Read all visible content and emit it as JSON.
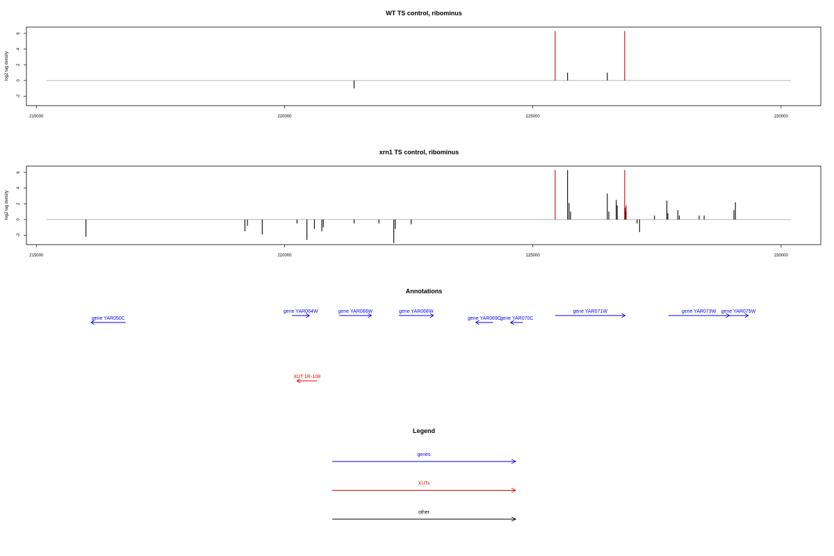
{
  "chart_data": [
    {
      "type": "bar",
      "title": "WT TS control, ribominus",
      "ylabel": "log2 tag density",
      "xlim": [
        214800,
        230800
      ],
      "ylim": [
        -3.2,
        6.8
      ],
      "x_ticks": [
        215000,
        220000,
        225000,
        230000
      ],
      "y_ticks": [
        -2,
        0,
        2,
        4,
        6
      ],
      "baseline": {
        "from": 215200,
        "to": 230200,
        "value": 0,
        "color": "#999999"
      },
      "series": [
        {
          "color": "#000000",
          "points": [
            [
              221400,
              -1.0
            ],
            [
              225700,
              1.0
            ],
            [
              226500,
              1.0
            ]
          ]
        },
        {
          "color": "#cc0000",
          "points": [
            [
              225450,
              6.3
            ],
            [
              226850,
              6.3
            ]
          ]
        }
      ]
    },
    {
      "type": "bar",
      "title": "xrn1 TS control, ribominus",
      "ylabel": "log2 tag density",
      "xlim": [
        214800,
        230800
      ],
      "ylim": [
        -3.2,
        6.8
      ],
      "x_ticks": [
        215000,
        220000,
        225000,
        230000
      ],
      "y_ticks": [
        -2,
        0,
        2,
        4,
        6
      ],
      "baseline": {
        "from": 215200,
        "to": 230200,
        "value": 0,
        "color": "#999999"
      },
      "series": [
        {
          "color": "#000000",
          "points": [
            [
              216000,
              -2.2
            ],
            [
              219200,
              -1.5
            ],
            [
              219250,
              -0.8
            ],
            [
              219550,
              -1.9
            ],
            [
              220250,
              -0.5
            ],
            [
              220450,
              -2.6
            ],
            [
              220600,
              -1.2
            ],
            [
              220750,
              -1.5
            ],
            [
              220780,
              -1.0
            ],
            [
              221400,
              -0.5
            ],
            [
              221900,
              -0.5
            ],
            [
              222200,
              -3.0
            ],
            [
              222230,
              -1.2
            ],
            [
              222550,
              -0.6
            ],
            [
              225700,
              6.3
            ],
            [
              225730,
              2.1
            ],
            [
              225760,
              1.0
            ],
            [
              226500,
              3.3
            ],
            [
              226530,
              1.0
            ],
            [
              226680,
              2.5
            ],
            [
              226700,
              1.8
            ],
            [
              226860,
              1.5
            ],
            [
              226870,
              1.0
            ],
            [
              227100,
              -0.5
            ],
            [
              227150,
              -1.6
            ],
            [
              227450,
              0.5
            ],
            [
              227700,
              2.4
            ],
            [
              227720,
              0.8
            ],
            [
              227920,
              1.2
            ],
            [
              227950,
              0.5
            ],
            [
              228350,
              0.5
            ],
            [
              228450,
              0.5
            ],
            [
              229050,
              1.2
            ],
            [
              229080,
              2.2
            ]
          ]
        },
        {
          "color": "#cc0000",
          "points": [
            [
              225450,
              6.3
            ],
            [
              226850,
              6.3
            ],
            [
              226880,
              1.8
            ]
          ]
        }
      ]
    }
  ],
  "annotations": {
    "title": "Annotations",
    "items": [
      {
        "label": "gene YAR050C",
        "start": 216800,
        "end": 216100,
        "row": 1,
        "color": "#0000ee"
      },
      {
        "label": "gene YAR064W",
        "start": 220150,
        "end": 220500,
        "row": 0,
        "color": "#0000ee"
      },
      {
        "label": "gene YAR066W",
        "start": 221100,
        "end": 221750,
        "row": 0,
        "color": "#0000ee"
      },
      {
        "label": "gene YAR068W",
        "start": 222300,
        "end": 223000,
        "row": 0,
        "color": "#0000ee"
      },
      {
        "label": "gene YAR069C",
        "start": 224200,
        "end": 223850,
        "row": 1,
        "color": "#0000ee"
      },
      {
        "label": "gene YAR070C",
        "start": 224800,
        "end": 224550,
        "row": 1,
        "color": "#0000ee"
      },
      {
        "label": "gene YAR071W",
        "start": 225450,
        "end": 226860,
        "row": 0,
        "color": "#0000ee"
      },
      {
        "label": "gene YAR073W",
        "start": 227730,
        "end": 228960,
        "row": 0,
        "color": "#0000ee"
      },
      {
        "label": "gene YAR075W",
        "start": 228940,
        "end": 229340,
        "row": 0,
        "color": "#0000ee"
      },
      {
        "label": "XUT 1R-108",
        "start": 220650,
        "end": 220250,
        "row": 2,
        "color": "#dd0000"
      }
    ]
  },
  "legend": {
    "title": "Legend",
    "items": [
      {
        "label": "genes",
        "color": "#0000ee"
      },
      {
        "label": "XUTs",
        "color": "#dd0000"
      },
      {
        "label": "other",
        "color": "#000000"
      }
    ]
  }
}
